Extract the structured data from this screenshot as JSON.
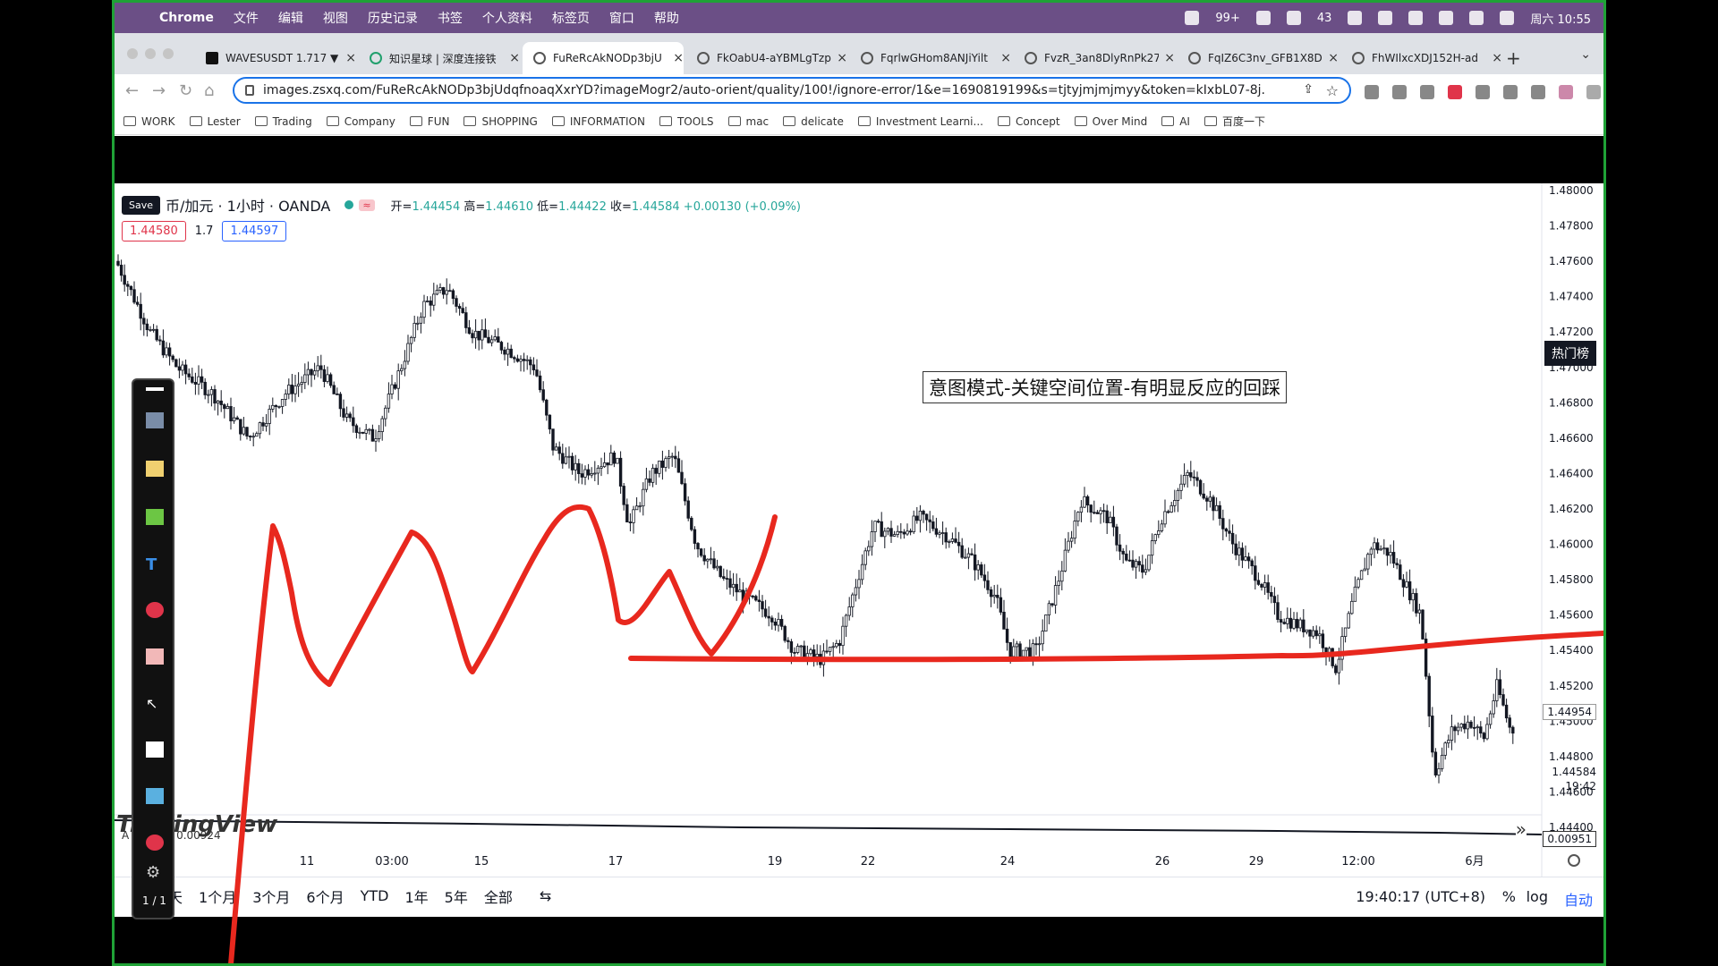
{
  "menubar": {
    "app": "Chrome",
    "items": [
      "文件",
      "编辑",
      "视图",
      "历史记录",
      "书签",
      "个人资料",
      "标签页",
      "窗口",
      "帮助"
    ],
    "status_badge": "99+",
    "wechat_count": "43",
    "datetime": "周六 10:55"
  },
  "tabs": [
    {
      "label": "WAVESUSDT 1.717 ▼",
      "icon": "tradingview-icon"
    },
    {
      "label": "知识星球 | 深度连接铁",
      "icon": "zsxq-icon"
    },
    {
      "label": "FuReRcAkNODp3bjU",
      "icon": "globe-icon",
      "active": true
    },
    {
      "label": "FkOabU4-aYBMLgTzp",
      "icon": "globe-icon"
    },
    {
      "label": "FqrlwGHom8ANJiYilt",
      "icon": "globe-icon"
    },
    {
      "label": "FvzR_3an8DlyRnPk27",
      "icon": "globe-icon"
    },
    {
      "label": "FqIZ6C3nv_GFB1X8D",
      "icon": "globe-icon"
    },
    {
      "label": "FhWIlxcXDJ152H-ad",
      "icon": "globe-icon"
    }
  ],
  "address": {
    "url": "images.zsxq.com/FuReRcAkNODp3bjUdqfnoaqXxrYD?imageMogr2/auto-orient/quality/100!/ignore-error/1&e=1690819199&s=tjtyjmjmjmyy&token=kIxbL07-8j..."
  },
  "bookmarks": [
    "WORK",
    "Lester",
    "Trading",
    "Company",
    "FUN",
    "SHOPPING",
    "INFORMATION",
    "TOOLS",
    "mac",
    "delicate",
    "Investment Learni...",
    "Concept",
    "Over Mind",
    "AI",
    "百度一下"
  ],
  "chart": {
    "save_label": "Save",
    "symbol": "币/加元 · 1小时 · OANDA",
    "ohlc": {
      "open_label": "开=",
      "open": "1.44454",
      "high_label": "高=",
      "high": "1.44610",
      "low_label": "低=",
      "low": "1.44422",
      "close_label": "收=",
      "close": "1.44584",
      "change": "+0.00130 (+0.09%)"
    },
    "bid": "1.44580",
    "spread": "1.7",
    "ask": "1.44597",
    "annotation": "意图模式-关键空间位置-有明显反应的回踩",
    "hotlist": "热门榜",
    "watermark": "TradingView",
    "indicator": "A 20 EMA 0.00924",
    "last_price": "1.44954",
    "last_close": "1.44584",
    "countdown": "19:42",
    "osc_value": "0.00951",
    "expand_icon": "»",
    "accent_up": "#26a69a",
    "accent_down": "#ef5350",
    "drawing_color": "#e8281e"
  },
  "chart_data": {
    "type": "candlestick",
    "yaxis_ticks": [
      "1.48000",
      "1.47800",
      "1.47600",
      "1.47400",
      "1.47200",
      "1.47000",
      "1.46800",
      "1.46600",
      "1.46400",
      "1.46200",
      "1.46000",
      "1.45800",
      "1.45600",
      "1.45400",
      "1.45200",
      "1.45000",
      "1.44800",
      "1.44600",
      "1.44400"
    ],
    "xaxis_ticks": [
      "11",
      "03:00",
      "15",
      "17",
      "19",
      "22",
      "24",
      "26",
      "29",
      "12:00",
      "6月"
    ],
    "ylim": [
      1.444,
      1.48
    ],
    "support_level": 1.4529
  },
  "bottombar": {
    "ranges": [
      "天",
      "1个月",
      "3个月",
      "6个月",
      "YTD",
      "1年",
      "5年",
      "全部"
    ],
    "timezone": "19:40:17 (UTC+8)",
    "pct": "%",
    "log": "log",
    "auto": "自动"
  },
  "drawbar": {
    "pages": "1 / 1"
  }
}
